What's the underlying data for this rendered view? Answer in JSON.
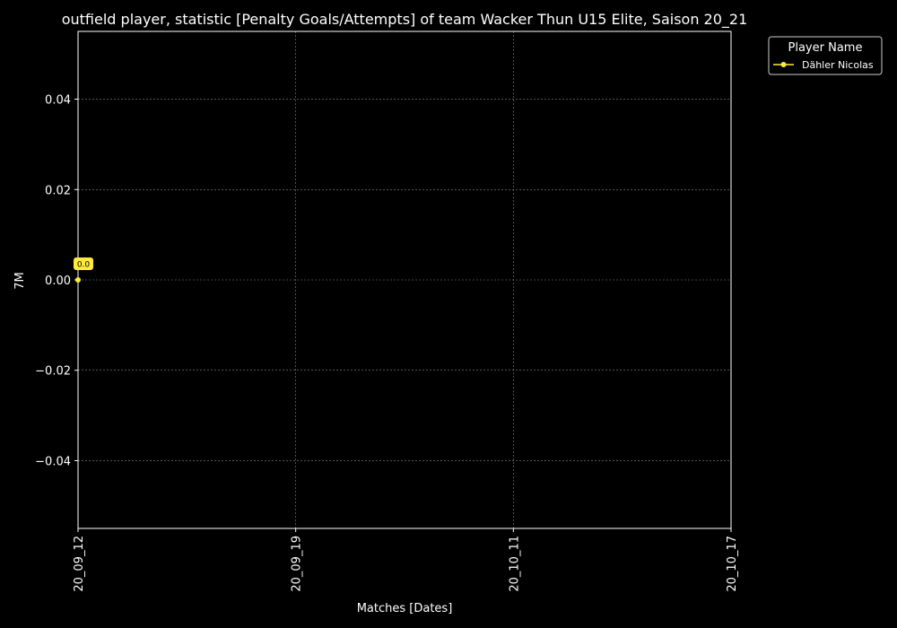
{
  "chart_data": {
    "type": "line",
    "title": "outfield player, statistic [Penalty Goals/Attempts] of team Wacker Thun U15 Elite, Saison 20_21",
    "xlabel": "Matches [Dates]",
    "ylabel": "7M",
    "categories": [
      "20_09_12",
      "20_09_19",
      "20_10_11",
      "20_10_17"
    ],
    "ylim": [
      -0.055,
      0.055
    ],
    "yticks": [
      -0.04,
      -0.02,
      0.0,
      0.02,
      0.04
    ],
    "ytick_labels": [
      "−0.04",
      "−0.02",
      "0.00",
      "0.02",
      "0.04"
    ],
    "grid": true,
    "legend": {
      "title": "Player Name",
      "placement": "outside-top-right"
    },
    "series": [
      {
        "name": "Dähler Nicolas",
        "color": "#ffeb3b",
        "points": [
          {
            "x": "20_09_12",
            "y": 0.0,
            "label": "0.0"
          }
        ]
      }
    ]
  }
}
